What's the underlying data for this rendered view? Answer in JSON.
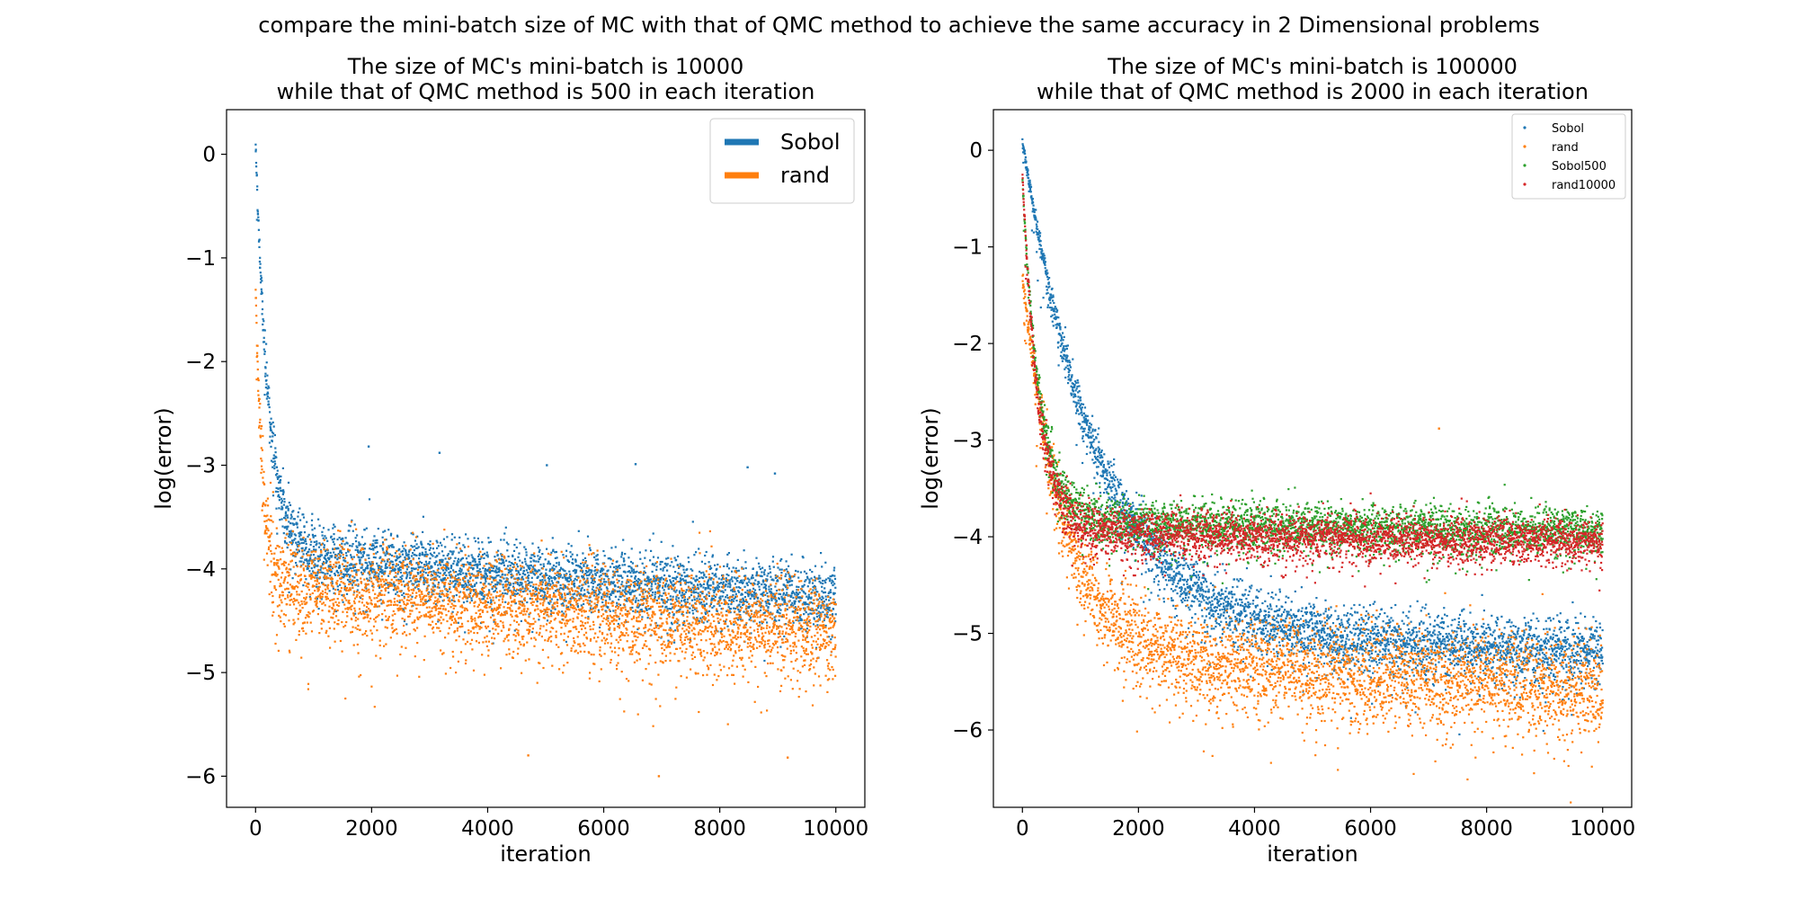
{
  "suptitle": "compare the mini-batch size of MC with that of QMC method to achieve the same accuracy in 2 Dimensional problems",
  "chart_data": [
    {
      "type": "scatter",
      "title_line1": "The size of MC's mini-batch is 10000",
      "title_line2": "while that of QMC method is 500 in each iteration",
      "xlabel": "iteration",
      "ylabel": "log(error)",
      "xlim": [
        -500,
        10500
      ],
      "ylim": [
        -6.3,
        0.43
      ],
      "xticks": [
        0,
        2000,
        4000,
        6000,
        8000,
        10000
      ],
      "yticks": [
        0,
        -1,
        -2,
        -3,
        -4,
        -5,
        -6
      ],
      "legend_position": "upper right",
      "legend_style": "line",
      "n_points": 10000,
      "series": [
        {
          "name": "Sobol",
          "color": "#1f77b4",
          "start": 0.15,
          "plateau": -3.85,
          "decay_iters": 220,
          "slope_per_1000": -0.045,
          "spread": 0.28,
          "outliers": [
            [
              1950,
              -2.82
            ],
            [
              3170,
              -2.88
            ],
            [
              5020,
              -3.0
            ],
            [
              6550,
              -2.99
            ],
            [
              8480,
              -3.02
            ],
            [
              8950,
              -3.08
            ]
          ]
        },
        {
          "name": "rand",
          "color": "#ff7f0e",
          "start": -1.28,
          "plateau": -4.15,
          "decay_iters": 120,
          "slope_per_1000": -0.045,
          "spread": 0.42,
          "outliers": [
            [
              6950,
              -6.0
            ],
            [
              4700,
              -5.8
            ],
            [
              9170,
              -5.82
            ]
          ]
        }
      ]
    },
    {
      "type": "scatter",
      "title_line1": "The size of MC's mini-batch is 100000",
      "title_line2": "while that of QMC method is 2000 in each iteration",
      "xlabel": "iteration",
      "ylabel": "log(error)",
      "xlim": [
        -500,
        10500
      ],
      "ylim": [
        -6.8,
        0.42
      ],
      "xticks": [
        0,
        2000,
        4000,
        6000,
        8000,
        10000
      ],
      "yticks": [
        0,
        -1,
        -2,
        -3,
        -4,
        -5,
        -6
      ],
      "legend_position": "upper right",
      "legend_style": "marker",
      "n_points": 10000,
      "series": [
        {
          "name": "Sobol",
          "color": "#1f77b4",
          "start": 0.1,
          "plateau": -5.0,
          "decay_iters": 1300,
          "slope_per_1000": -0.02,
          "spread": 0.3,
          "outliers": []
        },
        {
          "name": "rand",
          "color": "#ff7f0e",
          "start": -1.3,
          "plateau": -5.2,
          "decay_iters": 700,
          "slope_per_1000": -0.04,
          "spread": 0.45,
          "outliers": [
            [
              7180,
              -2.88
            ]
          ]
        },
        {
          "name": "Sobol500",
          "color": "#2ca02c",
          "start": -0.3,
          "plateau": -3.85,
          "decay_iters": 300,
          "slope_per_1000": -0.01,
          "spread": 0.22,
          "outliers": []
        },
        {
          "name": "rand10000",
          "color": "#d62728",
          "start": -0.25,
          "plateau": -3.95,
          "decay_iters": 280,
          "slope_per_1000": -0.01,
          "spread": 0.22,
          "outliers": []
        }
      ]
    }
  ]
}
